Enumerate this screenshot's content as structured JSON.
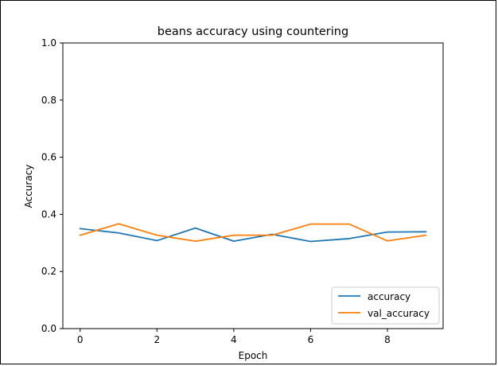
{
  "chart_data": {
    "type": "line",
    "title": "beans accuracy using countering",
    "xlabel": "Epoch",
    "ylabel": "Accuracy",
    "xlim": [
      -0.45,
      9.45
    ],
    "ylim": [
      0.0,
      1.0
    ],
    "xticks": [
      0,
      2,
      4,
      6,
      8
    ],
    "yticks": [
      0.0,
      0.2,
      0.4,
      0.6,
      0.8,
      1.0
    ],
    "xtick_labels": [
      "0",
      "2",
      "4",
      "6",
      "8"
    ],
    "ytick_labels": [
      "0.0",
      "0.2",
      "0.4",
      "0.6",
      "0.8",
      "1.0"
    ],
    "x": [
      0,
      1,
      2,
      3,
      4,
      5,
      6,
      7,
      8,
      9
    ],
    "series": [
      {
        "name": "accuracy",
        "color": "#1f77b4",
        "values": [
          0.35,
          0.335,
          0.308,
          0.352,
          0.306,
          0.33,
          0.305,
          0.315,
          0.338,
          0.339
        ]
      },
      {
        "name": "val_accuracy",
        "color": "#ff7f0e",
        "values": [
          0.327,
          0.367,
          0.327,
          0.306,
          0.327,
          0.327,
          0.366,
          0.366,
          0.307,
          0.327
        ]
      }
    ],
    "legend": {
      "position": "lower-right"
    },
    "grid": false
  }
}
